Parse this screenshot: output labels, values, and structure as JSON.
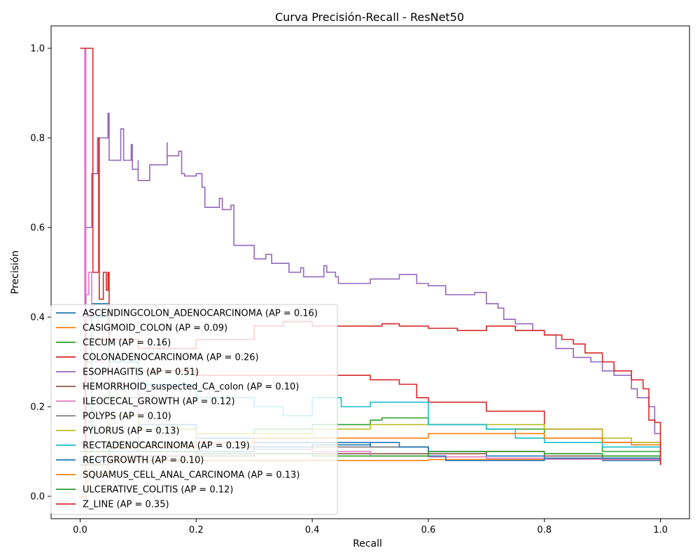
{
  "chart_data": {
    "type": "line",
    "title": "Curva Precisión-Recall - ResNet50",
    "xlabel": "Recall",
    "ylabel": "Precisión",
    "xlim": [
      -0.05,
      1.05
    ],
    "ylim": [
      -0.05,
      1.05
    ],
    "xticks": [
      0.0,
      0.2,
      0.4,
      0.6,
      0.8,
      1.0
    ],
    "yticks": [
      0.0,
      0.2,
      0.4,
      0.6,
      0.8,
      1.0
    ],
    "xtick_labels": [
      "0.0",
      "0.2",
      "0.4",
      "0.6",
      "0.8",
      "1.0"
    ],
    "ytick_labels": [
      "0.0",
      "0.2",
      "0.4",
      "0.6",
      "0.8",
      "1.0"
    ],
    "grid": false,
    "legend_position": "lower-left",
    "series": [
      {
        "name": "ASCENDINGCOLON_ADENOCARCINOMA (AP = 0.16)",
        "color": "#1f77b4",
        "points": [
          [
            0,
            0.07
          ],
          [
            0.01,
            0.3
          ],
          [
            0.02,
            0.43
          ],
          [
            0.05,
            0.25
          ],
          [
            0.1,
            0.16
          ],
          [
            0.2,
            0.13
          ],
          [
            0.3,
            0.12
          ],
          [
            0.4,
            0.12
          ],
          [
            0.5,
            0.11
          ],
          [
            0.6,
            0.1
          ],
          [
            0.7,
            0.09
          ],
          [
            0.8,
            0.085
          ],
          [
            0.9,
            0.08
          ],
          [
            1.0,
            0.075
          ]
        ]
      },
      {
        "name": "CASIGMOID_COLON (AP = 0.09)",
        "color": "#ff7f0e",
        "points": [
          [
            0,
            0.0
          ],
          [
            0.01,
            0.1
          ],
          [
            0.05,
            0.08
          ],
          [
            0.2,
            0.08
          ],
          [
            0.4,
            0.08
          ],
          [
            0.5,
            0.08
          ],
          [
            0.6,
            0.082
          ],
          [
            0.7,
            0.082
          ],
          [
            0.8,
            0.083
          ],
          [
            0.9,
            0.082
          ],
          [
            1.0,
            0.08
          ]
        ]
      },
      {
        "name": "CECUM (AP = 0.16)",
        "color": "#2ca02c",
        "points": [
          [
            0,
            0.1
          ],
          [
            0.01,
            0.3
          ],
          [
            0.02,
            0.35
          ],
          [
            0.05,
            0.22
          ],
          [
            0.1,
            0.15
          ],
          [
            0.2,
            0.14
          ],
          [
            0.3,
            0.15
          ],
          [
            0.4,
            0.16
          ],
          [
            0.5,
            0.17
          ],
          [
            0.52,
            0.175
          ],
          [
            0.6,
            0.16
          ],
          [
            0.7,
            0.15
          ],
          [
            0.8,
            0.13
          ],
          [
            0.9,
            0.1
          ],
          [
            1.0,
            0.075
          ]
        ]
      },
      {
        "name": "COLONADENOCARCINOMA (AP = 0.26)",
        "color": "#d62728",
        "points": [
          [
            0,
            0.1
          ],
          [
            0.01,
            0.4
          ],
          [
            0.02,
            0.35
          ],
          [
            0.05,
            0.3
          ],
          [
            0.1,
            0.28
          ],
          [
            0.2,
            0.27
          ],
          [
            0.3,
            0.27
          ],
          [
            0.4,
            0.27
          ],
          [
            0.5,
            0.26
          ],
          [
            0.55,
            0.25
          ],
          [
            0.58,
            0.22
          ],
          [
            0.6,
            0.21
          ],
          [
            0.7,
            0.19
          ],
          [
            0.8,
            0.15
          ],
          [
            0.9,
            0.12
          ],
          [
            1.0,
            0.07
          ]
        ]
      },
      {
        "name": "ESOPHAGITIS (AP = 0.51)",
        "color": "#9467bd",
        "points": [
          [
            0,
            0.4
          ],
          [
            0.01,
            0.6
          ],
          [
            0.02,
            0.72
          ],
          [
            0.03,
            0.8
          ],
          [
            0.048,
            0.855
          ],
          [
            0.05,
            0.75
          ],
          [
            0.07,
            0.82
          ],
          [
            0.075,
            0.75
          ],
          [
            0.088,
            0.785
          ],
          [
            0.09,
            0.73
          ],
          [
            0.1,
            0.75
          ],
          [
            0.1,
            0.705
          ],
          [
            0.12,
            0.74
          ],
          [
            0.15,
            0.79
          ],
          [
            0.15,
            0.76
          ],
          [
            0.17,
            0.77
          ],
          [
            0.175,
            0.72
          ],
          [
            0.18,
            0.715
          ],
          [
            0.2,
            0.72
          ],
          [
            0.21,
            0.69
          ],
          [
            0.215,
            0.645
          ],
          [
            0.24,
            0.665
          ],
          [
            0.245,
            0.64
          ],
          [
            0.26,
            0.65
          ],
          [
            0.265,
            0.56
          ],
          [
            0.3,
            0.56
          ],
          [
            0.3,
            0.53
          ],
          [
            0.32,
            0.54
          ],
          [
            0.33,
            0.52
          ],
          [
            0.35,
            0.52
          ],
          [
            0.36,
            0.5
          ],
          [
            0.38,
            0.51
          ],
          [
            0.385,
            0.49
          ],
          [
            0.42,
            0.515
          ],
          [
            0.425,
            0.5
          ],
          [
            0.44,
            0.49
          ],
          [
            0.445,
            0.475
          ],
          [
            0.5,
            0.485
          ],
          [
            0.55,
            0.495
          ],
          [
            0.57,
            0.495
          ],
          [
            0.58,
            0.475
          ],
          [
            0.6,
            0.47
          ],
          [
            0.63,
            0.45
          ],
          [
            0.65,
            0.45
          ],
          [
            0.68,
            0.455
          ],
          [
            0.7,
            0.43
          ],
          [
            0.72,
            0.42
          ],
          [
            0.73,
            0.395
          ],
          [
            0.75,
            0.385
          ],
          [
            0.78,
            0.37
          ],
          [
            0.8,
            0.36
          ],
          [
            0.82,
            0.33
          ],
          [
            0.85,
            0.31
          ],
          [
            0.88,
            0.3
          ],
          [
            0.9,
            0.28
          ],
          [
            0.92,
            0.27
          ],
          [
            0.95,
            0.24
          ],
          [
            0.96,
            0.22
          ],
          [
            0.98,
            0.2
          ],
          [
            0.99,
            0.14
          ],
          [
            1.0,
            0.14
          ]
        ]
      },
      {
        "name": "HEMORRHOID_suspected_CA_colon (AP = 0.10)",
        "color": "#8c564b",
        "points": [
          [
            0,
            0.07
          ],
          [
            0.05,
            0.09
          ],
          [
            0.1,
            0.09
          ],
          [
            0.2,
            0.09
          ],
          [
            0.3,
            0.095
          ],
          [
            0.4,
            0.095
          ],
          [
            0.5,
            0.095
          ],
          [
            0.6,
            0.095
          ],
          [
            0.7,
            0.1
          ],
          [
            0.8,
            0.09
          ],
          [
            0.9,
            0.085
          ],
          [
            1.0,
            0.075
          ]
        ]
      },
      {
        "name": "ILEOCECAL_GROWTH (AP = 0.12)",
        "color": "#e377c2",
        "points": [
          [
            0,
            0.1
          ],
          [
            0.008,
            1.0
          ],
          [
            0.01,
            0.45
          ],
          [
            0.015,
            0.5
          ],
          [
            0.02,
            0.3
          ],
          [
            0.05,
            0.25
          ],
          [
            0.1,
            0.15
          ],
          [
            0.2,
            0.12
          ],
          [
            0.3,
            0.11
          ],
          [
            0.4,
            0.1
          ],
          [
            0.5,
            0.09
          ],
          [
            0.6,
            0.088
          ],
          [
            0.7,
            0.085
          ],
          [
            0.8,
            0.083
          ],
          [
            0.9,
            0.082
          ],
          [
            1.0,
            0.08
          ]
        ]
      },
      {
        "name": "POLYPS (AP = 0.10)",
        "color": "#7f7f7f",
        "points": [
          [
            0,
            0.1
          ],
          [
            0.05,
            0.15
          ],
          [
            0.1,
            0.12
          ],
          [
            0.2,
            0.11
          ],
          [
            0.3,
            0.105
          ],
          [
            0.4,
            0.11
          ],
          [
            0.5,
            0.11
          ],
          [
            0.6,
            0.1
          ],
          [
            0.7,
            0.1
          ],
          [
            0.8,
            0.095
          ],
          [
            0.9,
            0.09
          ],
          [
            1.0,
            0.08
          ]
        ]
      },
      {
        "name": "PYLORUS (AP = 0.13)",
        "color": "#bcbd22",
        "points": [
          [
            0,
            0.1
          ],
          [
            0.05,
            0.18
          ],
          [
            0.1,
            0.15
          ],
          [
            0.2,
            0.14
          ],
          [
            0.3,
            0.14
          ],
          [
            0.4,
            0.15
          ],
          [
            0.5,
            0.16
          ],
          [
            0.6,
            0.16
          ],
          [
            0.7,
            0.16
          ],
          [
            0.8,
            0.15
          ],
          [
            0.9,
            0.13
          ],
          [
            0.95,
            0.12
          ],
          [
            1.0,
            0.1
          ]
        ]
      },
      {
        "name": "RECTADENOCARCINOMA (AP = 0.19)",
        "color": "#17becf",
        "points": [
          [
            0,
            0.1
          ],
          [
            0.02,
            0.4
          ],
          [
            0.05,
            0.3
          ],
          [
            0.1,
            0.25
          ],
          [
            0.2,
            0.22
          ],
          [
            0.3,
            0.2
          ],
          [
            0.35,
            0.18
          ],
          [
            0.4,
            0.22
          ],
          [
            0.45,
            0.2
          ],
          [
            0.5,
            0.21
          ],
          [
            0.52,
            0.21
          ],
          [
            0.6,
            0.16
          ],
          [
            0.7,
            0.15
          ],
          [
            0.75,
            0.13
          ],
          [
            0.8,
            0.12
          ],
          [
            0.9,
            0.11
          ],
          [
            1.0,
            0.1
          ]
        ]
      },
      {
        "name": "RECTGROWTH (AP = 0.10)",
        "color": "#1f77b4",
        "points": [
          [
            0,
            0.08
          ],
          [
            0.05,
            0.1
          ],
          [
            0.1,
            0.1
          ],
          [
            0.2,
            0.1
          ],
          [
            0.3,
            0.11
          ],
          [
            0.4,
            0.115
          ],
          [
            0.5,
            0.12
          ],
          [
            0.55,
            0.11
          ],
          [
            0.6,
            0.09
          ],
          [
            0.63,
            0.08
          ],
          [
            0.7,
            0.08
          ],
          [
            0.8,
            0.085
          ],
          [
            0.9,
            0.085
          ],
          [
            1.0,
            0.08
          ]
        ]
      },
      {
        "name": "SQUAMUS_CELL_ANAL_CARCINOMA (AP = 0.13)",
        "color": "#ff7f0e",
        "points": [
          [
            0,
            0.05
          ],
          [
            0.05,
            0.11
          ],
          [
            0.1,
            0.11
          ],
          [
            0.2,
            0.12
          ],
          [
            0.3,
            0.13
          ],
          [
            0.4,
            0.13
          ],
          [
            0.5,
            0.13
          ],
          [
            0.6,
            0.14
          ],
          [
            0.7,
            0.14
          ],
          [
            0.8,
            0.13
          ],
          [
            0.9,
            0.12
          ],
          [
            0.95,
            0.115
          ],
          [
            1.0,
            0.1
          ]
        ]
      },
      {
        "name": "ULCERATIVE_COLITIS (AP = 0.12)",
        "color": "#2ca02c",
        "points": [
          [
            0,
            0.1
          ],
          [
            0.05,
            0.12
          ],
          [
            0.1,
            0.1
          ],
          [
            0.2,
            0.095
          ],
          [
            0.3,
            0.095
          ],
          [
            0.4,
            0.09
          ],
          [
            0.5,
            0.09
          ],
          [
            0.6,
            0.1
          ],
          [
            0.7,
            0.1
          ],
          [
            0.8,
            0.095
          ],
          [
            0.9,
            0.09
          ],
          [
            1.0,
            0.085
          ]
        ]
      },
      {
        "name": "Z_LINE (AP = 0.35)",
        "color": "#d62728",
        "points": [
          [
            0,
            1.0
          ],
          [
            0.01,
            1.0
          ],
          [
            0.02,
            1.0
          ],
          [
            0.022,
            0.5
          ],
          [
            0.032,
            0.8
          ],
          [
            0.033,
            0.44
          ],
          [
            0.04,
            0.5
          ],
          [
            0.045,
            0.46
          ],
          [
            0.048,
            0.5
          ],
          [
            0.05,
            0.35
          ],
          [
            0.1,
            0.33
          ],
          [
            0.2,
            0.35
          ],
          [
            0.3,
            0.38
          ],
          [
            0.35,
            0.39
          ],
          [
            0.4,
            0.38
          ],
          [
            0.45,
            0.38
          ],
          [
            0.5,
            0.38
          ],
          [
            0.52,
            0.385
          ],
          [
            0.55,
            0.38
          ],
          [
            0.6,
            0.375
          ],
          [
            0.65,
            0.37
          ],
          [
            0.7,
            0.38
          ],
          [
            0.73,
            0.38
          ],
          [
            0.75,
            0.37
          ],
          [
            0.8,
            0.36
          ],
          [
            0.83,
            0.35
          ],
          [
            0.85,
            0.34
          ],
          [
            0.87,
            0.32
          ],
          [
            0.9,
            0.3
          ],
          [
            0.92,
            0.28
          ],
          [
            0.95,
            0.26
          ],
          [
            0.97,
            0.24
          ],
          [
            0.98,
            0.17
          ],
          [
            0.99,
            0.165
          ],
          [
            1.0,
            0.07
          ]
        ]
      }
    ]
  }
}
